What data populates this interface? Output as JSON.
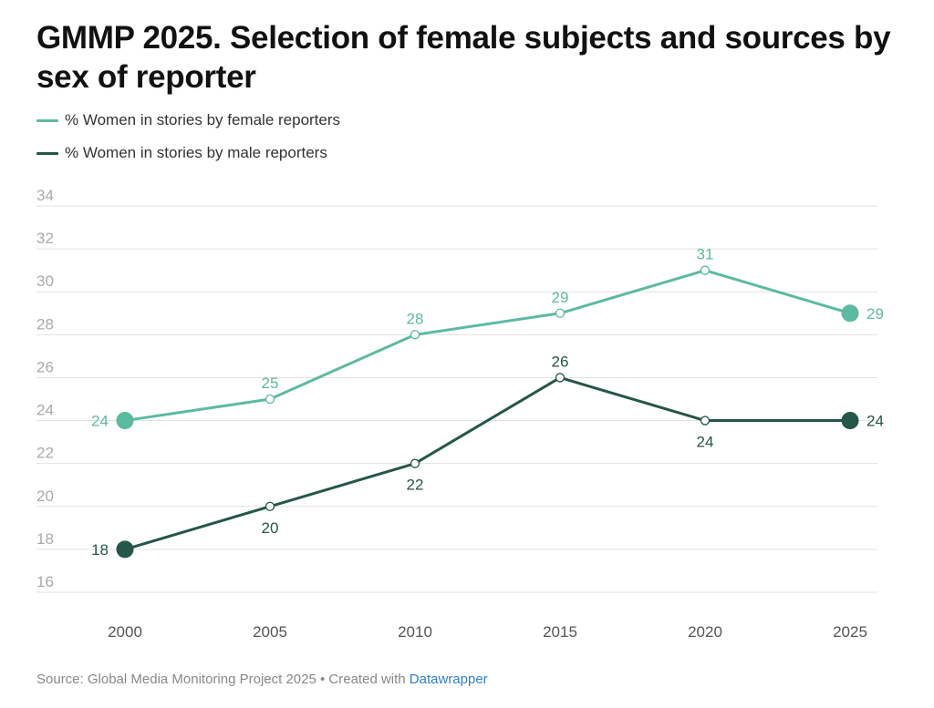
{
  "title": "GMMP 2025. Selection of female subjects and sources by sex of reporter",
  "footer": {
    "source_text": "Source: Global Media Monitoring Project 2025 • Created with ",
    "link_text": "Datawrapper"
  },
  "colors": {
    "female": "#5cbaa0",
    "male": "#24564a",
    "grid": "#e2e2e2",
    "tick": "#aaaaaa",
    "xtick": "#555555"
  },
  "chart_data": {
    "type": "line",
    "title": "GMMP 2025. Selection of female subjects and sources by sex of reporter",
    "x": [
      "2000",
      "2005",
      "2010",
      "2015",
      "2020",
      "2025"
    ],
    "series": [
      {
        "name": "% Women in stories by female reporters",
        "values": [
          24,
          25,
          28,
          29,
          31,
          29
        ],
        "label_positions": [
          "left",
          "above",
          "above",
          "above",
          "above",
          "right"
        ]
      },
      {
        "name": "% Women in stories by male reporters",
        "values": [
          18,
          20,
          22,
          26,
          24,
          24
        ],
        "label_positions": [
          "left",
          "below",
          "below",
          "above",
          "below",
          "right"
        ]
      }
    ],
    "y_ticks": [
      16,
      18,
      20,
      22,
      24,
      26,
      28,
      30,
      32,
      34
    ],
    "ylim": [
      16,
      34
    ],
    "xlabel": "",
    "ylabel": "",
    "grid": true,
    "legend_position": "top-left"
  }
}
